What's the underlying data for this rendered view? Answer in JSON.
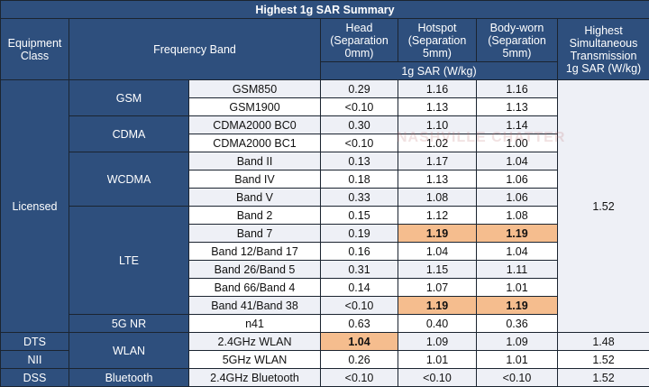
{
  "title": "Highest 1g SAR Summary",
  "headers": {
    "equipment_class": "Equipment Class",
    "frequency_band": "Frequency Band",
    "head": "Head (Separation 0mm)",
    "hotspot": "Hotspot (Separation 5mm)",
    "bodyworn": "Body-worn (Separation 5mm)",
    "unit": "1g SAR (W/kg)",
    "simultaneous": "Highest Simultaneous Transmission",
    "simultaneous_unit": "1g SAR (W/kg)"
  },
  "watermark": "NASHVILLE CHATTER",
  "classes": {
    "licensed": "Licensed",
    "dts": "DTS",
    "nii": "NII",
    "dss": "DSS"
  },
  "groups": {
    "gsm": "GSM",
    "cdma": "CDMA",
    "wcdma": "WCDMA",
    "lte": "LTE",
    "nr": "5G NR",
    "wlan": "WLAN",
    "bluetooth": "Bluetooth"
  },
  "rows": [
    {
      "band": "GSM850",
      "head": "0.29",
      "hotspot": "1.16",
      "body": "1.16"
    },
    {
      "band": "GSM1900",
      "head": "<0.10",
      "hotspot": "1.13",
      "body": "1.13"
    },
    {
      "band": "CDMA2000 BC0",
      "head": "0.30",
      "hotspot": "1.10",
      "body": "1.14"
    },
    {
      "band": "CDMA2000 BC1",
      "head": "<0.10",
      "hotspot": "1.02",
      "body": "1.00"
    },
    {
      "band": "Band II",
      "head": "0.13",
      "hotspot": "1.17",
      "body": "1.04"
    },
    {
      "band": "Band IV",
      "head": "0.18",
      "hotspot": "1.13",
      "body": "1.06"
    },
    {
      "band": "Band V",
      "head": "0.33",
      "hotspot": "1.08",
      "body": "1.06"
    },
    {
      "band": "Band 2",
      "head": "0.15",
      "hotspot": "1.12",
      "body": "1.08"
    },
    {
      "band": "Band 7",
      "head": "0.19",
      "hotspot": "1.19",
      "body": "1.19"
    },
    {
      "band": "Band 12/Band 17",
      "head": "0.16",
      "hotspot": "1.04",
      "body": "1.04"
    },
    {
      "band": "Band 26/Band 5",
      "head": "0.31",
      "hotspot": "1.15",
      "body": "1.11"
    },
    {
      "band": "Band 66/Band 4",
      "head": "0.14",
      "hotspot": "1.07",
      "body": "1.01"
    },
    {
      "band": "Band 41/Band 38",
      "head": "<0.10",
      "hotspot": "1.19",
      "body": "1.19"
    },
    {
      "band": "n41",
      "head": "0.63",
      "hotspot": "0.40",
      "body": "0.36"
    },
    {
      "band": "2.4GHz WLAN",
      "head": "1.04",
      "hotspot": "1.09",
      "body": "1.09"
    },
    {
      "band": "5GHz WLAN",
      "head": "0.26",
      "hotspot": "1.01",
      "body": "1.01"
    },
    {
      "band": "2.4GHz Bluetooth",
      "head": "<0.10",
      "hotspot": "<0.10",
      "body": "<0.10"
    }
  ],
  "simultaneous": {
    "licensed": "1.52",
    "dts": "1.48",
    "nii": "1.52",
    "dss": "1.52"
  },
  "colors": {
    "header_bg": "#2e4f7d",
    "highlight": "#f5bd8e",
    "row_light": "#eef0f6"
  }
}
